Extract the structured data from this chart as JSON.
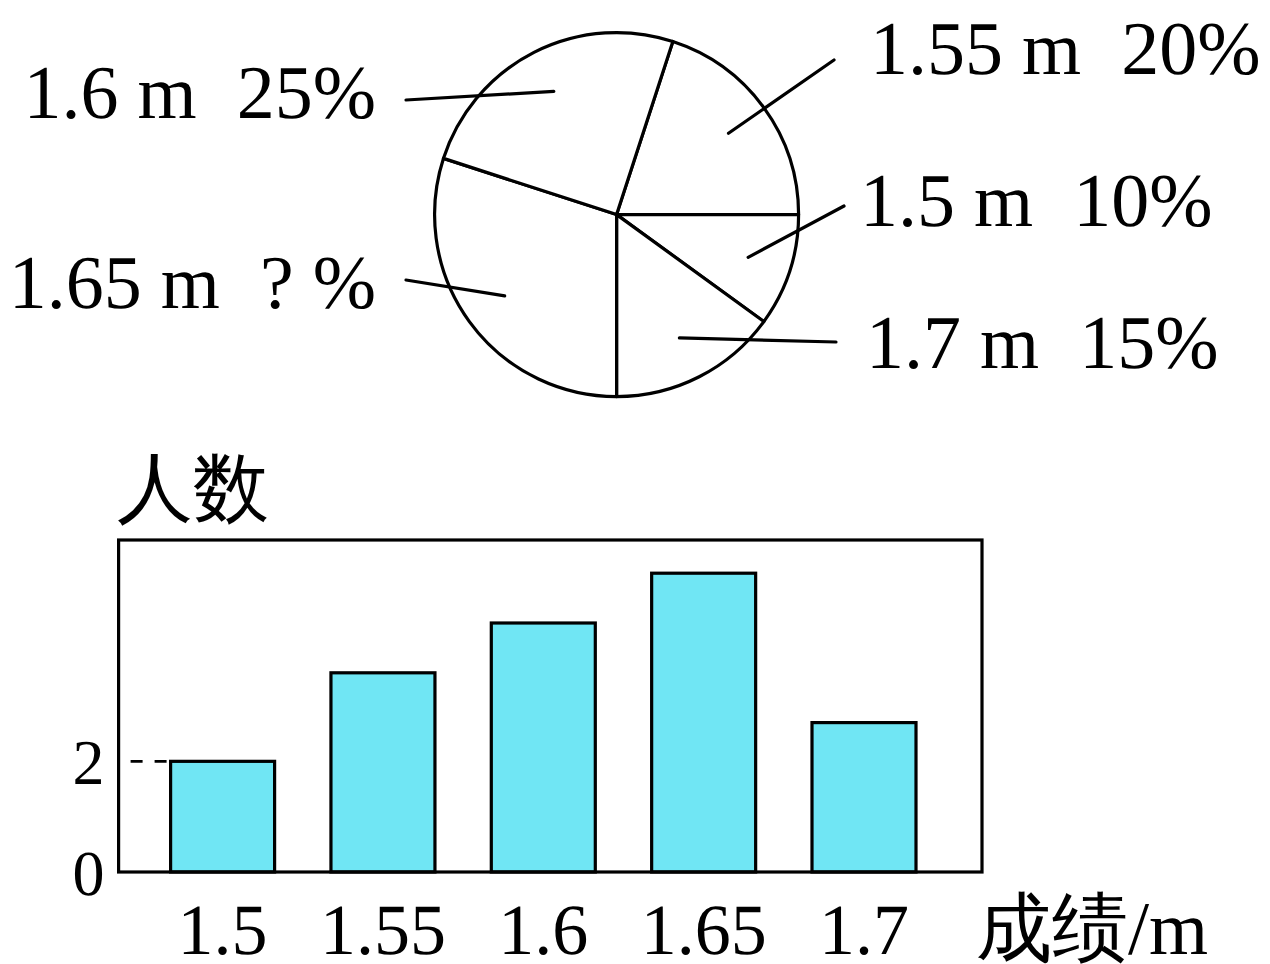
{
  "chart_data": [
    {
      "type": "pie",
      "categories": [
        "1.55 m",
        "1.5 m",
        "1.7 m",
        "1.65 m",
        "1.6 m"
      ],
      "values": [
        20,
        10,
        15,
        30,
        25
      ],
      "value_labels": [
        "20%",
        "10%",
        "15%",
        "? %",
        "25%"
      ],
      "colors": [
        "#ffffff",
        "#ffffff",
        "#ffffff",
        "#ffffff",
        "#ffffff"
      ]
    },
    {
      "type": "bar",
      "categories": [
        "1.5",
        "1.55",
        "1.6",
        "1.65",
        "1.7"
      ],
      "values": [
        2,
        3.6,
        4.5,
        5.4,
        2.7
      ],
      "color": "#70e6f4",
      "xlabel": "成绩/m",
      "ylabel": "人数",
      "ylim": [
        0,
        6
      ],
      "yticks": [
        0,
        2
      ]
    }
  ]
}
